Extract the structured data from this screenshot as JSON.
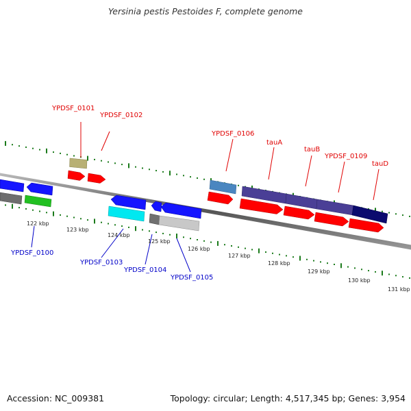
{
  "title": "Yersinia pestis Pestoides F, complete genome",
  "accession": "Accession: NC_009381",
  "topology": "Topology: circular; Length: 4,517,345 bp; Genes: 3,954",
  "colors": {
    "forward_label": "#e00000",
    "reverse_label": "#0000c8",
    "tick": "#1a7a1a",
    "backbone": "#777777"
  },
  "kbp_labels": [
    "122 kbp",
    "123 kbp",
    "124 kbp",
    "125 kbp",
    "126 kbp",
    "127 kbp",
    "128 kbp",
    "129 kbp",
    "130 kbp",
    "131 kbp"
  ],
  "forward_gene_labels": [
    "YPDSF_0101",
    "YPDSF_0102",
    "YPDSF_0106",
    "tauA",
    "tauB",
    "YPDSF_0109",
    "tauD"
  ],
  "reverse_gene_labels": [
    "YPDSF_0100",
    "YPDSF_0103",
    "YPDSF_0104",
    "YPDSF_0105"
  ]
}
